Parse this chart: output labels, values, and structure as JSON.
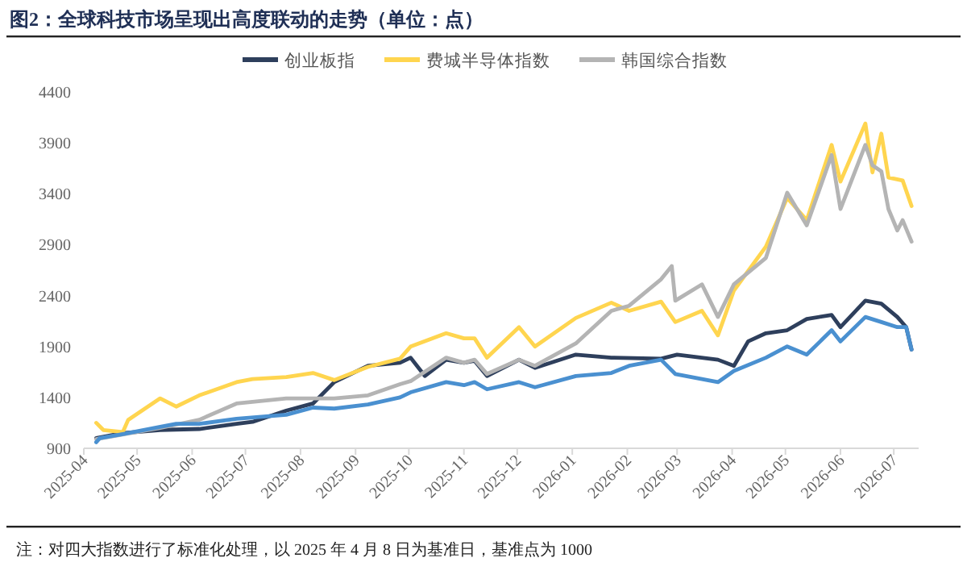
{
  "chart_data": {
    "type": "line",
    "title": "图2：全球科技市场呈现出高度联动的走势（单位：点）",
    "annotations": [
      "注：对四大指数进行了标准化处理，以 2025 年 4 月 8 日为基准日，基准点为 1000"
    ],
    "xlim": [
      "2025-04-01",
      "2026-07-15"
    ],
    "xticks": [
      "2025-04",
      "2025-05",
      "2025-06",
      "2025-07",
      "2025-08",
      "2025-09",
      "2025-10",
      "2025-11",
      "2025-12",
      "2026-01",
      "2026-02",
      "2026-03",
      "2026-04",
      "2026-05",
      "2026-06",
      "2026-07"
    ],
    "ylim": [
      900,
      4400
    ],
    "yticks": [
      900,
      1400,
      1900,
      2400,
      2900,
      3400,
      3900,
      4400
    ],
    "grid": false,
    "legend": "top",
    "marker": "none",
    "line_style": "solid",
    "series": [
      {
        "name": "创业板指",
        "color": "#2e3f5c",
        "x": [
          "2025-04-08",
          "2025-04-23",
          "2025-05-14",
          "2025-06-05",
          "2025-06-26",
          "2025-07-05",
          "2025-07-24",
          "2025-08-08",
          "2025-08-20",
          "2025-09-08",
          "2025-09-26",
          "2025-10-02",
          "2025-10-10",
          "2025-10-22",
          "2025-11-01",
          "2025-11-07",
          "2025-11-14",
          "2025-12-02",
          "2025-12-11",
          "2026-01-03",
          "2026-01-23",
          "2026-02-20",
          "2026-03-01",
          "2026-03-24",
          "2026-04-02",
          "2026-04-10",
          "2026-04-20",
          "2026-05-02",
          "2026-05-13",
          "2026-05-27",
          "2026-06-01",
          "2026-06-15",
          "2026-06-24",
          "2026-07-03",
          "2026-07-08",
          "2026-07-11"
        ],
        "values": [
          1000,
          1050,
          1080,
          1090,
          1140,
          1160,
          1270,
          1340,
          1550,
          1710,
          1740,
          1790,
          1610,
          1770,
          1740,
          1760,
          1610,
          1770,
          1690,
          1820,
          1790,
          1780,
          1820,
          1770,
          1710,
          1950,
          2030,
          2060,
          2170,
          2210,
          2090,
          2350,
          2320,
          2190,
          2090,
          1870
        ]
      },
      {
        "name": "费城半导体指数",
        "color": "#ffd54f",
        "x": [
          "2025-04-08",
          "2025-04-12",
          "2025-04-23",
          "2025-04-26",
          "2025-05-14",
          "2025-05-23",
          "2025-06-05",
          "2025-06-26",
          "2025-07-05",
          "2025-07-24",
          "2025-08-08",
          "2025-08-20",
          "2025-09-08",
          "2025-09-26",
          "2025-10-02",
          "2025-10-22",
          "2025-11-01",
          "2025-11-07",
          "2025-11-14",
          "2025-12-02",
          "2025-12-11",
          "2026-01-03",
          "2026-01-23",
          "2026-02-02",
          "2026-02-20",
          "2026-02-28",
          "2026-03-15",
          "2026-03-24",
          "2026-04-02",
          "2026-04-20",
          "2026-05-02",
          "2026-05-13",
          "2026-05-27",
          "2026-06-01",
          "2026-06-15",
          "2026-06-19",
          "2026-06-24",
          "2026-06-28",
          "2026-07-06",
          "2026-07-11"
        ],
        "values": [
          1150,
          1080,
          1060,
          1180,
          1390,
          1310,
          1420,
          1550,
          1580,
          1600,
          1640,
          1570,
          1700,
          1780,
          1900,
          2030,
          1980,
          1980,
          1790,
          2090,
          1900,
          2180,
          2330,
          2250,
          2340,
          2140,
          2250,
          2010,
          2450,
          2880,
          3360,
          3140,
          3880,
          3520,
          4090,
          3610,
          3990,
          3560,
          3530,
          3280
        ]
      },
      {
        "name": "韩国综合指数",
        "color": "#b4b4b4",
        "x": [
          "2025-04-08",
          "2025-05-14",
          "2025-06-05",
          "2025-06-26",
          "2025-07-24",
          "2025-08-20",
          "2025-09-08",
          "2025-09-26",
          "2025-10-02",
          "2025-10-22",
          "2025-11-01",
          "2025-11-07",
          "2025-11-14",
          "2025-12-02",
          "2025-12-11",
          "2026-01-03",
          "2026-01-23",
          "2026-02-02",
          "2026-02-20",
          "2026-02-26",
          "2026-02-28",
          "2026-03-15",
          "2026-03-24",
          "2026-04-02",
          "2026-04-20",
          "2026-05-02",
          "2026-05-13",
          "2026-05-27",
          "2026-06-01",
          "2026-06-15",
          "2026-06-19",
          "2026-06-24",
          "2026-06-28",
          "2026-07-03",
          "2026-07-06",
          "2026-07-11"
        ],
        "values": [
          990,
          1100,
          1180,
          1340,
          1390,
          1390,
          1420,
          1530,
          1560,
          1790,
          1740,
          1770,
          1630,
          1770,
          1710,
          1930,
          2250,
          2300,
          2560,
          2690,
          2350,
          2510,
          2190,
          2510,
          2770,
          3410,
          3090,
          3780,
          3250,
          3880,
          3680,
          3620,
          3250,
          3040,
          3140,
          2930
        ]
      },
      {
        "color": "#4a90d0",
        "x": [
          "2025-04-08",
          "2025-04-10",
          "2025-04-23",
          "2025-05-14",
          "2025-05-23",
          "2025-06-05",
          "2025-06-26",
          "2025-07-24",
          "2025-08-08",
          "2025-08-20",
          "2025-09-08",
          "2025-09-26",
          "2025-10-02",
          "2025-10-22",
          "2025-11-01",
          "2025-11-07",
          "2025-11-14",
          "2025-12-02",
          "2025-12-11",
          "2026-01-03",
          "2026-01-23",
          "2026-02-02",
          "2026-02-20",
          "2026-02-28",
          "2026-03-24",
          "2026-04-02",
          "2026-04-20",
          "2026-05-02",
          "2026-05-13",
          "2026-05-27",
          "2026-06-01",
          "2026-06-15",
          "2026-06-24",
          "2026-07-03",
          "2026-07-08",
          "2026-07-11"
        ],
        "values": [
          960,
          1000,
          1040,
          1110,
          1140,
          1140,
          1190,
          1230,
          1300,
          1290,
          1330,
          1400,
          1450,
          1550,
          1520,
          1550,
          1480,
          1550,
          1500,
          1610,
          1640,
          1710,
          1770,
          1630,
          1550,
          1660,
          1790,
          1900,
          1820,
          2060,
          1950,
          2190,
          2140,
          2090,
          2090,
          1870
        ]
      }
    ]
  }
}
